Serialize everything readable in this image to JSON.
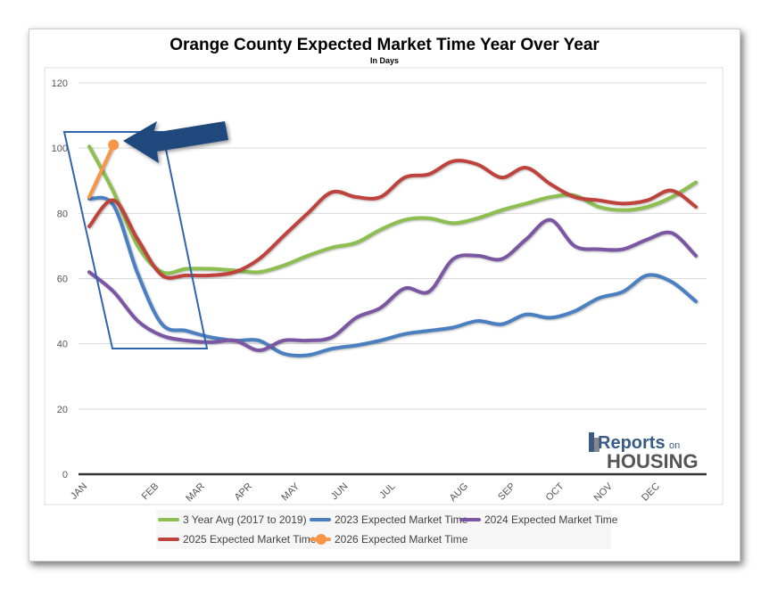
{
  "chart_data": {
    "type": "line",
    "title": "Orange County Expected Market Time Year Over Year",
    "subtitle": "In Days",
    "ylim": [
      0,
      120
    ],
    "yticks": [
      0,
      20,
      40,
      60,
      80,
      100,
      120
    ],
    "grid": true,
    "legend_position": "bottom",
    "xticks": [
      {
        "label": "JAN",
        "week": 0
      },
      {
        "label": "FEB",
        "week": 5.9
      },
      {
        "label": "MAR",
        "week": 9.7
      },
      {
        "label": "APR",
        "week": 13.6
      },
      {
        "label": "MAY",
        "week": 17.5
      },
      {
        "label": "JUN",
        "week": 21.5
      },
      {
        "label": "JUL",
        "week": 25.4
      },
      {
        "label": "AUG",
        "week": 31.4
      },
      {
        "label": "SEP",
        "week": 35.3
      },
      {
        "label": "OCT",
        "week": 39.3
      },
      {
        "label": "NOV",
        "week": 43.3
      },
      {
        "label": "DEC",
        "week": 47.2
      }
    ],
    "weeks": [
      0,
      2,
      4,
      6,
      8,
      10,
      12,
      14,
      16,
      18,
      20,
      22,
      24,
      26,
      28,
      30,
      32,
      34,
      36,
      38,
      40,
      42,
      44,
      46,
      48,
      50
    ],
    "series": [
      {
        "name": "3 Year Avg (2017 to 2019)",
        "color": "#8cbf4f",
        "values": [
          100.5,
          86.6,
          70,
          62,
          63,
          63,
          62.5,
          62,
          64,
          67,
          69.5,
          71,
          75,
          78,
          78.5,
          77,
          78.5,
          81,
          83,
          85,
          85.5,
          82,
          81,
          82,
          85,
          89.5
        ]
      },
      {
        "name": "2023 Expected Market Time",
        "color": "#4a7fc1",
        "values": [
          84.5,
          82.5,
          61.5,
          46,
          44,
          42,
          41,
          41,
          37,
          36.5,
          38.5,
          39.5,
          41,
          43,
          44,
          45,
          47,
          46,
          49,
          48,
          50,
          54,
          56,
          61,
          59,
          53
        ]
      },
      {
        "name": "2024 Expected Market Time",
        "color": "#7b57a3",
        "values": [
          62,
          56,
          47,
          42.5,
          41,
          40.5,
          41,
          38,
          41,
          41,
          42,
          48,
          51,
          57,
          56,
          66,
          67,
          66,
          72,
          78,
          70,
          69,
          69,
          72,
          74,
          67
        ]
      },
      {
        "name": "2025 Expected Market Time",
        "color": "#c0423d",
        "values": [
          76,
          84,
          72,
          61,
          61,
          61,
          62,
          66,
          73,
          80,
          86.5,
          85,
          85,
          91,
          92,
          96,
          95,
          91,
          94,
          89,
          85,
          84,
          83,
          84,
          87,
          82
        ]
      },
      {
        "name": "2026 Expected Market Time",
        "color": "#f79646",
        "values": [
          85,
          101
        ],
        "markers": true
      }
    ]
  },
  "logo_text": "Reports on HOUSING"
}
